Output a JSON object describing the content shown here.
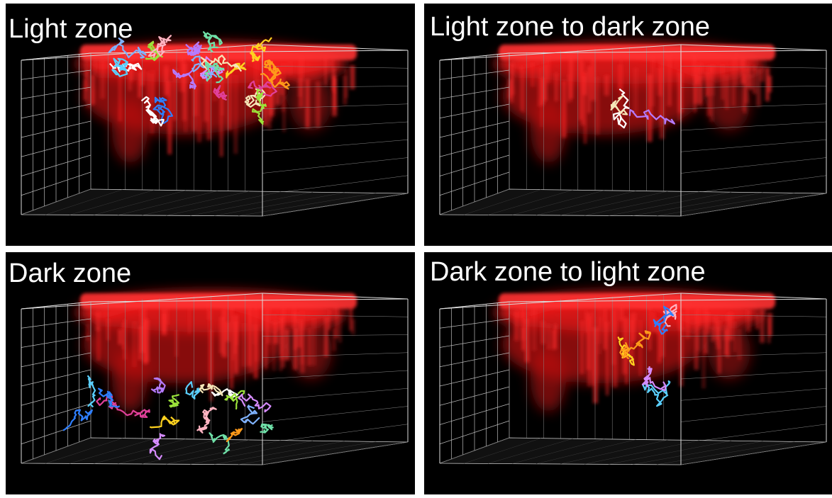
{
  "panels": [
    {
      "label": "Light zone"
    },
    {
      "label": "Light zone to dark zone"
    },
    {
      "label": "Dark zone"
    },
    {
      "label": "Dark zone to light zone"
    }
  ]
}
